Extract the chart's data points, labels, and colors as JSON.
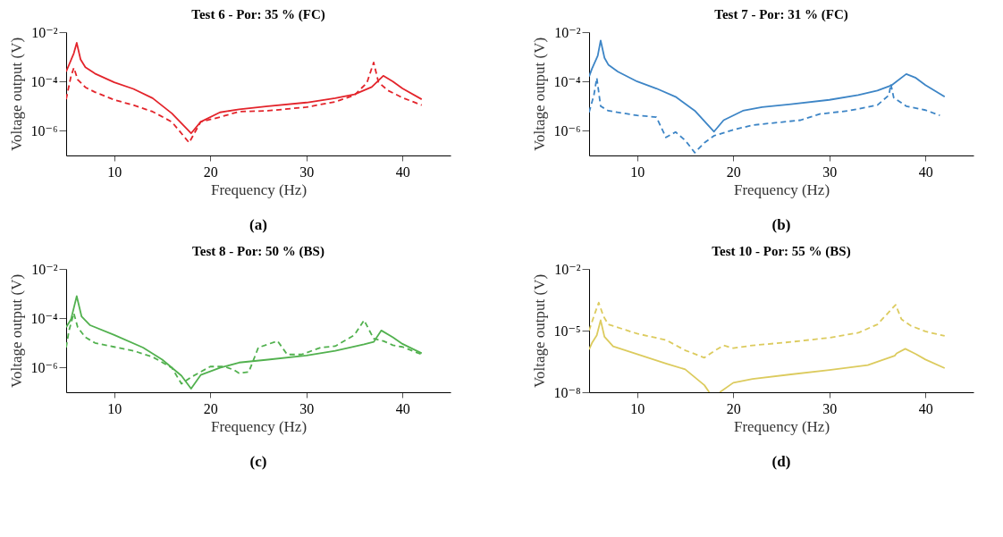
{
  "chart_data": [
    {
      "type": "line",
      "title": "Test 6 - Por: 35 % (FC)",
      "xlabel": "Frequency (Hz)",
      "ylabel": "Voltage output (V)",
      "annotations": [
        "(a)"
      ],
      "log": true,
      "xlim": [
        5,
        45
      ],
      "xticks": [
        10,
        20,
        30,
        40
      ],
      "ylim": [
        1e-07,
        0.01
      ],
      "yticks": [
        {
          "value": 0.01,
          "label": "10⁻²"
        },
        {
          "value": 0.0001,
          "label": "10⁻⁴"
        },
        {
          "value": 1e-06,
          "label": "10⁻⁶"
        }
      ],
      "series": [
        {
          "color": "#e3242b",
          "line_style": "solid",
          "x": [
            5,
            5.8,
            6.1,
            6.5,
            7,
            8,
            10,
            12,
            14,
            16,
            18,
            19,
            21,
            23,
            26,
            30,
            33,
            35,
            36.8,
            38,
            39,
            40,
            42
          ],
          "values": [
            0.00025,
            0.0014,
            0.0037,
            0.00079,
            0.00038,
            0.00021,
            9.3e-05,
            5e-05,
            2.1e-05,
            5.1e-06,
            7.9e-07,
            2.3e-06,
            5.6e-06,
            7.4e-06,
            1e-05,
            1.4e-05,
            2.1e-05,
            3e-05,
            6e-05,
            0.00017,
            0.0001,
            5.2e-05,
            1.9e-05
          ]
        },
        {
          "color": "#e3242b",
          "line_style": "dashed",
          "x": [
            5,
            5.5,
            5.8,
            6.2,
            7,
            8,
            10,
            12,
            14,
            16,
            17.8,
            19,
            21,
            23,
            26,
            30,
            33,
            35,
            36.3,
            37,
            37.5,
            38.5,
            40,
            42
          ],
          "values": [
            1.9e-05,
            0.00016,
            0.00036,
            0.00012,
            5.8e-05,
            3.7e-05,
            1.8e-05,
            1.1e-05,
            6e-06,
            2.3e-06,
            3.3e-07,
            2.3e-06,
            3.6e-06,
            6e-06,
            6.5e-06,
            9.1e-06,
            1.5e-05,
            2.8e-05,
            8.9e-05,
            0.00059,
            9.3e-05,
            4.3e-05,
            2.2e-05,
            1.1e-05
          ]
        }
      ]
    },
    {
      "type": "line",
      "title": "Test 7 - Por: 31 % (FC)",
      "xlabel": "Frequency (Hz)",
      "ylabel": "Voltage output (V)",
      "annotations": [
        "(b)"
      ],
      "log": true,
      "xlim": [
        5,
        45
      ],
      "xticks": [
        10,
        20,
        30,
        40
      ],
      "ylim": [
        1e-07,
        0.01
      ],
      "yticks": [
        {
          "value": 0.01,
          "label": "10⁻²"
        },
        {
          "value": 0.0001,
          "label": "10⁻⁴"
        },
        {
          "value": 1e-06,
          "label": "10⁻⁶"
        }
      ],
      "series": [
        {
          "color": "#3d85c6",
          "line_style": "solid",
          "x": [
            5,
            5.3,
            5.9,
            6.2,
            6.6,
            7,
            8,
            10,
            12,
            14,
            16,
            18,
            19,
            21,
            23,
            26,
            30,
            33,
            35,
            36.5,
            38,
            39,
            40,
            42
          ],
          "values": [
            0.00016,
            0.00033,
            0.0011,
            0.0046,
            0.00091,
            0.00048,
            0.00025,
            0.0001,
            5.2e-05,
            2.4e-05,
            6.5e-06,
            9.3e-07,
            2.7e-06,
            6.5e-06,
            9.1e-06,
            1.2e-05,
            1.8e-05,
            2.8e-05,
            4.3e-05,
            7.1e-05,
            0.0002,
            0.00014,
            7.1e-05,
            2.4e-05
          ]
        },
        {
          "color": "#3d85c6",
          "line_style": "dashed",
          "x": [
            5,
            5.5,
            5.8,
            6.2,
            7,
            10,
            12,
            13,
            14,
            15,
            16,
            17,
            18,
            20,
            22,
            27,
            29,
            32,
            35,
            36.2,
            36.4,
            36.7,
            38,
            40,
            41.5
          ],
          "values": [
            5.6e-06,
            2.8e-05,
            0.00014,
            1e-05,
            6.5e-06,
            4.2e-06,
            3.6e-06,
            5.4e-07,
            8.9e-07,
            4.1e-07,
            1.3e-07,
            3.3e-07,
            6.3e-07,
            1.1e-06,
            1.7e-06,
            2.7e-06,
            4.8e-06,
            6.5e-06,
            1.1e-05,
            2.8e-05,
            7.8e-05,
            2.2e-05,
            1e-05,
            6.9e-06,
            4.2e-06
          ]
        }
      ]
    },
    {
      "type": "line",
      "title": "Test 8 - Por: 50 % (BS)",
      "xlabel": "Frequency (Hz)",
      "ylabel": "Voltage output (V)",
      "annotations": [
        "(c)"
      ],
      "log": true,
      "xlim": [
        5,
        45
      ],
      "xticks": [
        10,
        20,
        30,
        40
      ],
      "ylim": [
        1e-07,
        0.01
      ],
      "yticks": [
        {
          "value": 0.01,
          "label": "10⁻²"
        },
        {
          "value": 0.0001,
          "label": "10⁻⁴"
        },
        {
          "value": 1e-06,
          "label": "10⁻⁶"
        }
      ],
      "series": [
        {
          "color": "#52b14f",
          "line_style": "solid",
          "x": [
            5,
            5.5,
            6.1,
            6.6,
            7.5,
            10,
            13,
            15,
            17,
            18,
            19,
            21,
            23,
            26,
            30,
            33,
            36,
            37,
            37.8,
            39,
            40,
            42
          ],
          "values": [
            4.3e-05,
            8.9e-05,
            0.00079,
            0.00012,
            5.2e-05,
            2.1e-05,
            6.5e-06,
            2.1e-06,
            4.7e-07,
            1.4e-07,
            5e-07,
            9.8e-07,
            1.6e-06,
            2.1e-06,
            3.1e-06,
            4.8e-06,
            8.7e-06,
            1.1e-05,
            3.2e-05,
            1.7e-05,
            9.1e-06,
            3.8e-06
          ]
        },
        {
          "color": "#52b14f",
          "line_style": "dashed",
          "x": [
            5,
            5.3,
            5.8,
            6.2,
            7,
            8,
            10,
            12,
            14,
            16,
            17,
            18,
            20,
            21.5,
            22.5,
            23,
            24,
            25,
            27,
            28,
            29.5,
            31.5,
            33,
            35,
            36,
            37,
            38,
            39,
            40,
            42
          ],
          "values": [
            6.5e-06,
            3.2e-05,
            0.00016,
            4.3e-05,
            1.7e-05,
            1e-05,
            6.9e-06,
            4.8e-06,
            2.7e-06,
            9.8e-07,
            2.2e-07,
            4.1e-07,
            1.1e-06,
            1.1e-06,
            7.9e-07,
            5.9e-07,
            6.6e-07,
            6.5e-06,
            1.2e-05,
            3.4e-06,
            3.4e-06,
            6.5e-06,
            7.4e-06,
            2.1e-05,
            8.3e-05,
            1.5e-05,
            1.2e-05,
            8.1e-06,
            6.9e-06,
            3.4e-06
          ]
        }
      ]
    },
    {
      "type": "line",
      "title": "Test 10 - Por: 55 % (BS)",
      "xlabel": "Frequency (Hz)",
      "ylabel": "Voltage output (V)",
      "annotations": [
        "(d)"
      ],
      "log": true,
      "xlim": [
        5,
        45
      ],
      "xticks": [
        10,
        20,
        30,
        40
      ],
      "ylim": [
        1e-08,
        0.01
      ],
      "yticks": [
        {
          "value": 0.01,
          "label": "10⁻²"
        },
        {
          "value": 1e-05,
          "label": "10⁻⁵"
        },
        {
          "value": 1e-08,
          "label": "10⁻⁸"
        }
      ],
      "series": [
        {
          "color": "#dccb5e",
          "line_style": "solid",
          "x": [
            5,
            5.3,
            5.8,
            6.2,
            6.6,
            7.5,
            10,
            13,
            15,
            17,
            17.5,
            18,
            18.6,
            20,
            22,
            26,
            30,
            34,
            36.8,
            37,
            37.9,
            39,
            40,
            42
          ],
          "values": [
            1.2e-06,
            2.5e-06,
            5.9e-06,
            3.2e-05,
            5e-06,
            1.7e-06,
            7.2e-07,
            2.5e-07,
            1.3e-07,
            2.2e-08,
            1e-08,
            null,
            1e-08,
            2.9e-08,
            4.4e-08,
            7.4e-08,
            1.2e-07,
            2.1e-07,
            6e-07,
            7.8e-07,
            1.3e-06,
            7.2e-07,
            3.9e-07,
            1.5e-07
          ]
        },
        {
          "color": "#dccb5e",
          "line_style": "dashed",
          "x": [
            5,
            5.6,
            6,
            6.5,
            7,
            10,
            13,
            15,
            17,
            18,
            19,
            20,
            22,
            26,
            30,
            33,
            35,
            36.9,
            37.5,
            38.5,
            40,
            42
          ],
          "values": [
            1e-05,
            6.9e-05,
            0.00023,
            4.9e-05,
            2e-05,
            7.1e-06,
            3.5e-06,
            1.1e-06,
            4.8e-07,
            1e-06,
            1.9e-06,
            1.4e-06,
            1.9e-06,
            2.8e-06,
            4.5e-06,
            7.8e-06,
            2e-05,
            0.00018,
            3.6e-05,
            1.7e-05,
            9.1e-06,
            5.5e-06
          ]
        }
      ]
    }
  ]
}
